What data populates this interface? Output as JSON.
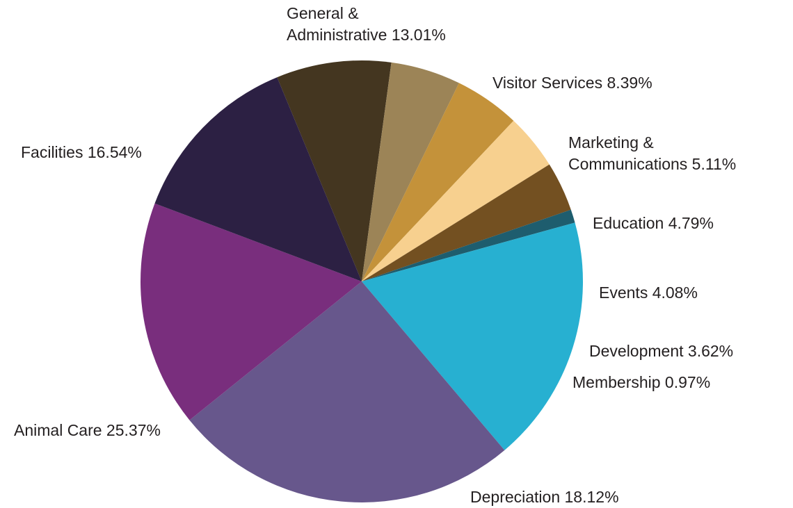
{
  "chart_data": {
    "type": "pie",
    "start_angle_deg": -22.5,
    "direction": "clockwise",
    "slices": [
      {
        "label": "Visitor Services",
        "value": 8.39,
        "color": "#443620"
      },
      {
        "label": "Marketing & Communications",
        "value": 5.11,
        "color": "#9c8457"
      },
      {
        "label": "Education",
        "value": 4.79,
        "color": "#c4923a"
      },
      {
        "label": "Events",
        "value": 4.08,
        "color": "#f7d08f"
      },
      {
        "label": "Development",
        "value": 3.62,
        "color": "#735021"
      },
      {
        "label": "Membership",
        "value": 0.97,
        "color": "#1e5d6e"
      },
      {
        "label": "Depreciation",
        "value": 18.12,
        "color": "#27b0d1"
      },
      {
        "label": "Animal Care",
        "value": 25.37,
        "color": "#67578c"
      },
      {
        "label": "Facilities",
        "value": 16.54,
        "color": "#792e7d"
      },
      {
        "label": "General & Administrative",
        "value": 13.01,
        "color": "#2c2043"
      }
    ],
    "labels": [
      {
        "lines": [
          "General &",
          "Administrative 13.01%"
        ]
      },
      {
        "lines": [
          "Visitor Services 8.39%"
        ]
      },
      {
        "lines": [
          "Marketing &",
          "Communications 5.11%"
        ]
      },
      {
        "lines": [
          "Education 4.79%"
        ]
      },
      {
        "lines": [
          "Events 4.08%"
        ]
      },
      {
        "lines": [
          "Development 3.62%"
        ]
      },
      {
        "lines": [
          "Membership 0.97%"
        ]
      },
      {
        "lines": [
          "Depreciation 18.12%"
        ]
      },
      {
        "lines": [
          "Animal Care 25.37%"
        ]
      },
      {
        "lines": [
          "Facilities 16.54%"
        ]
      }
    ]
  }
}
